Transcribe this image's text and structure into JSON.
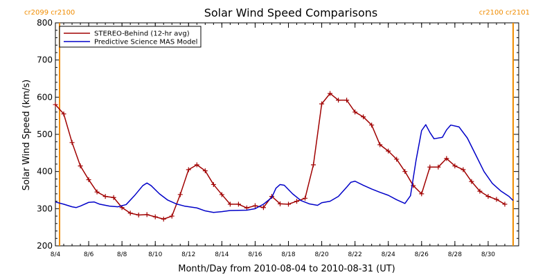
{
  "chart_data": {
    "type": "line",
    "title": "Solar Wind Speed Comparisons",
    "xlabel": "Month/Day from 2010-08-04 to 2010-08-31 (UT)",
    "ylabel": "Solar Wind Speed (km/s)",
    "xlim": [
      "2010-08-04",
      "2010-08-31T20:00"
    ],
    "ylim": [
      200,
      800
    ],
    "yticks": [
      200,
      300,
      400,
      500,
      600,
      700,
      800
    ],
    "xticks": [
      {
        "date": "2010-08-04",
        "label": "8/4"
      },
      {
        "date": "2010-08-06",
        "label": "8/6"
      },
      {
        "date": "2010-08-08",
        "label": "8/8"
      },
      {
        "date": "2010-08-10",
        "label": "8/10"
      },
      {
        "date": "2010-08-12",
        "label": "8/12"
      },
      {
        "date": "2010-08-14",
        "label": "8/14"
      },
      {
        "date": "2010-08-16",
        "label": "8/16"
      },
      {
        "date": "2010-08-18",
        "label": "8/18"
      },
      {
        "date": "2010-08-20",
        "label": "8/20"
      },
      {
        "date": "2010-08-22",
        "label": "8/22"
      },
      {
        "date": "2010-08-24",
        "label": "8/24"
      },
      {
        "date": "2010-08-26",
        "label": "8/26"
      },
      {
        "date": "2010-08-28",
        "label": "8/28"
      },
      {
        "date": "2010-08-30",
        "label": "8/30"
      }
    ],
    "grid": false,
    "legend": "top-left",
    "carrington_markers": [
      {
        "date": "2010-08-04T06:00",
        "label": "cr2099 cr2100",
        "side": "left",
        "color": "#f08c00"
      },
      {
        "date": "2010-08-31T12:00",
        "label": "cr2100 cr2101",
        "side": "right",
        "color": "#f08c00"
      }
    ],
    "series": [
      {
        "name": "STEREO-Behind (12-hr avg)",
        "color": "#a00000",
        "marker": "plus",
        "points": [
          [
            "2010-08-04T00:00",
            580
          ],
          [
            "2010-08-04T12:00",
            555
          ],
          [
            "2010-08-05T00:00",
            478
          ],
          [
            "2010-08-05T12:00",
            415
          ],
          [
            "2010-08-06T00:00",
            378
          ],
          [
            "2010-08-06T12:00",
            345
          ],
          [
            "2010-08-07T00:00",
            333
          ],
          [
            "2010-08-07T12:00",
            330
          ],
          [
            "2010-08-08T00:00",
            303
          ],
          [
            "2010-08-08T12:00",
            288
          ],
          [
            "2010-08-09T00:00",
            283
          ],
          [
            "2010-08-09T12:00",
            284
          ],
          [
            "2010-08-10T00:00",
            278
          ],
          [
            "2010-08-10T12:00",
            272
          ],
          [
            "2010-08-11T00:00",
            280
          ],
          [
            "2010-08-11T12:00",
            338
          ],
          [
            "2010-08-12T00:00",
            405
          ],
          [
            "2010-08-12T12:00",
            418
          ],
          [
            "2010-08-13T00:00",
            402
          ],
          [
            "2010-08-13T12:00",
            365
          ],
          [
            "2010-08-14T00:00",
            338
          ],
          [
            "2010-08-14T12:00",
            312
          ],
          [
            "2010-08-15T00:00",
            312
          ],
          [
            "2010-08-15T12:00",
            302
          ],
          [
            "2010-08-16T00:00",
            308
          ],
          [
            "2010-08-16T12:00",
            303
          ],
          [
            "2010-08-17T00:00",
            333
          ],
          [
            "2010-08-17T12:00",
            313
          ],
          [
            "2010-08-18T00:00",
            312
          ],
          [
            "2010-08-18T12:00",
            320
          ],
          [
            "2010-08-19T00:00",
            328
          ],
          [
            "2010-08-19T12:00",
            418
          ],
          [
            "2010-08-20T00:00",
            582
          ],
          [
            "2010-08-20T12:00",
            610
          ],
          [
            "2010-08-21T00:00",
            592
          ],
          [
            "2010-08-21T12:00",
            592
          ],
          [
            "2010-08-22T00:00",
            560
          ],
          [
            "2010-08-22T12:00",
            547
          ],
          [
            "2010-08-23T00:00",
            525
          ],
          [
            "2010-08-23T12:00",
            472
          ],
          [
            "2010-08-24T00:00",
            455
          ],
          [
            "2010-08-24T12:00",
            433
          ],
          [
            "2010-08-25T00:00",
            400
          ],
          [
            "2010-08-25T12:00",
            362
          ],
          [
            "2010-08-26T00:00",
            340
          ],
          [
            "2010-08-26T12:00",
            412
          ],
          [
            "2010-08-27T00:00",
            412
          ],
          [
            "2010-08-27T12:00",
            435
          ],
          [
            "2010-08-28T00:00",
            415
          ],
          [
            "2010-08-28T12:00",
            405
          ],
          [
            "2010-08-29T00:00",
            373
          ],
          [
            "2010-08-29T12:00",
            347
          ],
          [
            "2010-08-30T00:00",
            333
          ],
          [
            "2010-08-30T12:00",
            325
          ],
          [
            "2010-08-31T00:00",
            312
          ]
        ]
      },
      {
        "name": "Predictive Science MAS Model",
        "color": "#0000c8",
        "marker": "none",
        "points": [
          [
            "2010-08-04T00:00",
            318
          ],
          [
            "2010-08-04T12:00",
            312
          ],
          [
            "2010-08-05T00:00",
            305
          ],
          [
            "2010-08-05T06:00",
            303
          ],
          [
            "2010-08-05T12:00",
            307
          ],
          [
            "2010-08-06T00:00",
            317
          ],
          [
            "2010-08-06T08:00",
            318
          ],
          [
            "2010-08-06T16:00",
            312
          ],
          [
            "2010-08-07T06:00",
            307
          ],
          [
            "2010-08-07T18:00",
            305
          ],
          [
            "2010-08-08T06:00",
            311
          ],
          [
            "2010-08-08T18:00",
            335
          ],
          [
            "2010-08-09T06:00",
            362
          ],
          [
            "2010-08-09T12:00",
            369
          ],
          [
            "2010-08-09T18:00",
            362
          ],
          [
            "2010-08-10T06:00",
            340
          ],
          [
            "2010-08-10T18:00",
            323
          ],
          [
            "2010-08-11T06:00",
            313
          ],
          [
            "2010-08-11T18:00",
            307
          ],
          [
            "2010-08-12T12:00",
            302
          ],
          [
            "2010-08-13T00:00",
            294
          ],
          [
            "2010-08-13T12:00",
            290
          ],
          [
            "2010-08-14T00:00",
            292
          ],
          [
            "2010-08-14T12:00",
            295
          ],
          [
            "2010-08-15T12:00",
            296
          ],
          [
            "2010-08-16T00:00",
            300
          ],
          [
            "2010-08-16T12:00",
            312
          ],
          [
            "2010-08-17T00:00",
            330
          ],
          [
            "2010-08-17T06:00",
            355
          ],
          [
            "2010-08-17T12:00",
            365
          ],
          [
            "2010-08-17T18:00",
            363
          ],
          [
            "2010-08-18T06:00",
            340
          ],
          [
            "2010-08-18T18:00",
            322
          ],
          [
            "2010-08-19T06:00",
            313
          ],
          [
            "2010-08-19T18:00",
            309
          ],
          [
            "2010-08-20T00:00",
            316
          ],
          [
            "2010-08-20T12:00",
            320
          ],
          [
            "2010-08-21T00:00",
            333
          ],
          [
            "2010-08-21T12:00",
            358
          ],
          [
            "2010-08-21T18:00",
            371
          ],
          [
            "2010-08-22T00:00",
            374
          ],
          [
            "2010-08-22T12:00",
            363
          ],
          [
            "2010-08-23T00:00",
            353
          ],
          [
            "2010-08-23T12:00",
            344
          ],
          [
            "2010-08-24T00:00",
            336
          ],
          [
            "2010-08-24T12:00",
            324
          ],
          [
            "2010-08-25T00:00",
            314
          ],
          [
            "2010-08-25T08:00",
            335
          ],
          [
            "2010-08-25T16:00",
            430
          ],
          [
            "2010-08-26T00:00",
            510
          ],
          [
            "2010-08-26T06:00",
            526
          ],
          [
            "2010-08-26T12:00",
            505
          ],
          [
            "2010-08-26T18:00",
            488
          ],
          [
            "2010-08-27T06:00",
            492
          ],
          [
            "2010-08-27T12:00",
            512
          ],
          [
            "2010-08-27T18:00",
            525
          ],
          [
            "2010-08-28T06:00",
            520
          ],
          [
            "2010-08-28T18:00",
            490
          ],
          [
            "2010-08-29T06:00",
            445
          ],
          [
            "2010-08-29T18:00",
            400
          ],
          [
            "2010-08-30T06:00",
            368
          ],
          [
            "2010-08-30T18:00",
            348
          ],
          [
            "2010-08-31T06:00",
            333
          ],
          [
            "2010-08-31T12:00",
            322
          ]
        ]
      }
    ]
  }
}
